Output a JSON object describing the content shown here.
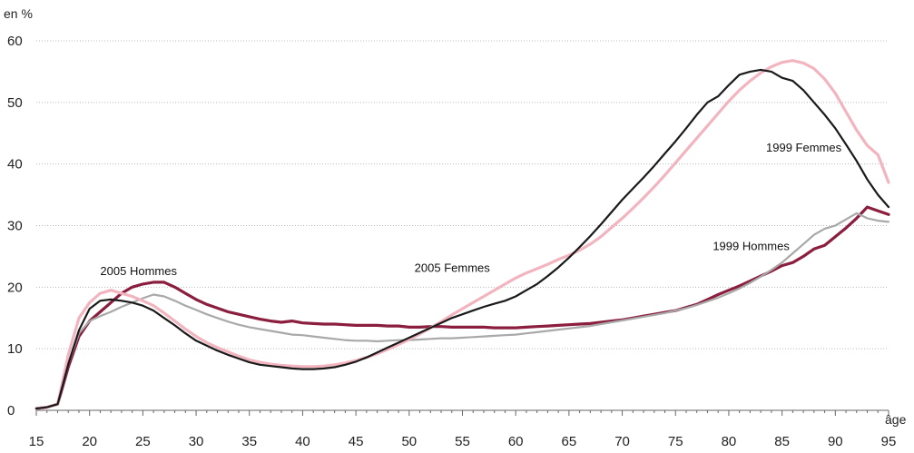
{
  "chart_data": {
    "type": "line",
    "ylabel": "en %",
    "xlabel": "âge",
    "xlim": [
      15,
      95
    ],
    "ylim": [
      0,
      60
    ],
    "x_ticks": [
      15,
      20,
      25,
      30,
      35,
      40,
      45,
      50,
      55,
      60,
      65,
      70,
      75,
      80,
      85,
      90,
      95
    ],
    "y_ticks": [
      0,
      10,
      20,
      30,
      40,
      50,
      60
    ],
    "grid": "horizontal dotted",
    "legend": "none",
    "series": [
      {
        "name": "2005 Hommes",
        "color": "#8b1e3f",
        "points": [
          [
            15,
            0.3
          ],
          [
            16,
            0.5
          ],
          [
            17,
            1.0
          ],
          [
            18,
            7
          ],
          [
            19,
            12
          ],
          [
            20,
            14.5
          ],
          [
            21,
            16
          ],
          [
            22,
            17.5
          ],
          [
            23,
            19
          ],
          [
            24,
            20
          ],
          [
            25,
            20.5
          ],
          [
            26,
            20.8
          ],
          [
            27,
            20.8
          ],
          [
            28,
            20
          ],
          [
            29,
            19
          ],
          [
            30,
            18
          ],
          [
            31,
            17.2
          ],
          [
            32,
            16.6
          ],
          [
            33,
            16
          ],
          [
            34,
            15.6
          ],
          [
            35,
            15.2
          ],
          [
            36,
            14.8
          ],
          [
            37,
            14.5
          ],
          [
            38,
            14.3
          ],
          [
            39,
            14.5
          ],
          [
            40,
            14.2
          ],
          [
            41,
            14.1
          ],
          [
            42,
            14
          ],
          [
            43,
            14
          ],
          [
            44,
            13.9
          ],
          [
            45,
            13.8
          ],
          [
            46,
            13.8
          ],
          [
            47,
            13.8
          ],
          [
            48,
            13.7
          ],
          [
            49,
            13.7
          ],
          [
            50,
            13.5
          ],
          [
            51,
            13.5
          ],
          [
            52,
            13.6
          ],
          [
            53,
            13.6
          ],
          [
            54,
            13.5
          ],
          [
            55,
            13.5
          ],
          [
            56,
            13.5
          ],
          [
            57,
            13.5
          ],
          [
            58,
            13.4
          ],
          [
            59,
            13.4
          ],
          [
            60,
            13.4
          ],
          [
            61,
            13.5
          ],
          [
            62,
            13.6
          ],
          [
            63,
            13.7
          ],
          [
            64,
            13.8
          ],
          [
            65,
            13.9
          ],
          [
            66,
            14
          ],
          [
            67,
            14.1
          ],
          [
            68,
            14.3
          ],
          [
            69,
            14.5
          ],
          [
            70,
            14.7
          ],
          [
            71,
            15
          ],
          [
            72,
            15.3
          ],
          [
            73,
            15.6
          ],
          [
            74,
            15.9
          ],
          [
            75,
            16.2
          ],
          [
            76,
            16.7
          ],
          [
            77,
            17.2
          ],
          [
            78,
            18
          ],
          [
            79,
            18.8
          ],
          [
            80,
            19.5
          ],
          [
            81,
            20.2
          ],
          [
            82,
            21
          ],
          [
            83,
            21.8
          ],
          [
            84,
            22.6
          ],
          [
            85,
            23.5
          ],
          [
            86,
            24
          ],
          [
            87,
            25
          ],
          [
            88,
            26.2
          ],
          [
            89,
            26.8
          ],
          [
            90,
            28.2
          ],
          [
            91,
            29.6
          ],
          [
            92,
            31.2
          ],
          [
            93,
            33
          ],
          [
            94,
            32.4
          ],
          [
            95,
            31.8
          ]
        ]
      },
      {
        "name": "1999 Hommes",
        "color": "#a9a9a9",
        "points": [
          [
            15,
            0.3
          ],
          [
            16,
            0.5
          ],
          [
            17,
            1.0
          ],
          [
            18,
            7.5
          ],
          [
            19,
            12.5
          ],
          [
            20,
            14.5
          ],
          [
            21,
            15.3
          ],
          [
            22,
            16
          ],
          [
            23,
            16.8
          ],
          [
            24,
            17.5
          ],
          [
            25,
            18.2
          ],
          [
            26,
            18.8
          ],
          [
            27,
            18.5
          ],
          [
            28,
            17.8
          ],
          [
            29,
            17
          ],
          [
            30,
            16.3
          ],
          [
            31,
            15.6
          ],
          [
            32,
            15
          ],
          [
            33,
            14.4
          ],
          [
            34,
            13.9
          ],
          [
            35,
            13.5
          ],
          [
            36,
            13.2
          ],
          [
            37,
            12.9
          ],
          [
            38,
            12.6
          ],
          [
            39,
            12.3
          ],
          [
            40,
            12.2
          ],
          [
            41,
            12
          ],
          [
            42,
            11.8
          ],
          [
            43,
            11.6
          ],
          [
            44,
            11.4
          ],
          [
            45,
            11.3
          ],
          [
            46,
            11.3
          ],
          [
            47,
            11.2
          ],
          [
            48,
            11.3
          ],
          [
            49,
            11.4
          ],
          [
            50,
            11.4
          ],
          [
            51,
            11.5
          ],
          [
            52,
            11.6
          ],
          [
            53,
            11.7
          ],
          [
            54,
            11.7
          ],
          [
            55,
            11.8
          ],
          [
            56,
            11.9
          ],
          [
            57,
            12
          ],
          [
            58,
            12.1
          ],
          [
            59,
            12.2
          ],
          [
            60,
            12.3
          ],
          [
            61,
            12.5
          ],
          [
            62,
            12.7
          ],
          [
            63,
            12.9
          ],
          [
            64,
            13.1
          ],
          [
            65,
            13.3
          ],
          [
            66,
            13.5
          ],
          [
            67,
            13.7
          ],
          [
            68,
            14
          ],
          [
            69,
            14.3
          ],
          [
            70,
            14.6
          ],
          [
            71,
            14.9
          ],
          [
            72,
            15.2
          ],
          [
            73,
            15.5
          ],
          [
            74,
            15.8
          ],
          [
            75,
            16.2
          ],
          [
            76,
            16.6
          ],
          [
            77,
            17.1
          ],
          [
            78,
            17.7
          ],
          [
            79,
            18.3
          ],
          [
            80,
            19
          ],
          [
            81,
            19.8
          ],
          [
            82,
            20.7
          ],
          [
            83,
            21.7
          ],
          [
            84,
            22.8
          ],
          [
            85,
            24
          ],
          [
            86,
            25.5
          ],
          [
            87,
            27
          ],
          [
            88,
            28.5
          ],
          [
            89,
            29.5
          ],
          [
            90,
            30
          ],
          [
            91,
            31
          ],
          [
            92,
            32
          ],
          [
            93,
            31.2
          ],
          [
            94,
            30.8
          ],
          [
            95,
            30.6
          ]
        ]
      },
      {
        "name": "2005 Femmes",
        "color": "#f2b5c0",
        "points": [
          [
            15,
            0.3
          ],
          [
            16,
            0.5
          ],
          [
            17,
            1.0
          ],
          [
            18,
            9
          ],
          [
            19,
            15
          ],
          [
            20,
            17.5
          ],
          [
            21,
            19
          ],
          [
            22,
            19.5
          ],
          [
            23,
            19
          ],
          [
            24,
            18.5
          ],
          [
            25,
            17.8
          ],
          [
            26,
            17
          ],
          [
            27,
            15.8
          ],
          [
            28,
            14.5
          ],
          [
            29,
            13.2
          ],
          [
            30,
            12
          ],
          [
            31,
            11
          ],
          [
            32,
            10.2
          ],
          [
            33,
            9.5
          ],
          [
            34,
            8.8
          ],
          [
            35,
            8.2
          ],
          [
            36,
            7.8
          ],
          [
            37,
            7.5
          ],
          [
            38,
            7.3
          ],
          [
            39,
            7.2
          ],
          [
            40,
            7.1
          ],
          [
            41,
            7.1
          ],
          [
            42,
            7.2
          ],
          [
            43,
            7.4
          ],
          [
            44,
            7.7
          ],
          [
            45,
            8.1
          ],
          [
            46,
            8.6
          ],
          [
            47,
            9.2
          ],
          [
            48,
            9.9
          ],
          [
            49,
            10.7
          ],
          [
            50,
            11.5
          ],
          [
            51,
            12.4
          ],
          [
            52,
            13.4
          ],
          [
            53,
            14.4
          ],
          [
            54,
            15.5
          ],
          [
            55,
            16.5
          ],
          [
            56,
            17.5
          ],
          [
            57,
            18.5
          ],
          [
            58,
            19.5
          ],
          [
            59,
            20.5
          ],
          [
            60,
            21.5
          ],
          [
            61,
            22.3
          ],
          [
            62,
            23
          ],
          [
            63,
            23.7
          ],
          [
            64,
            24.5
          ],
          [
            65,
            25.2
          ],
          [
            66,
            26
          ],
          [
            67,
            27
          ],
          [
            68,
            28.2
          ],
          [
            69,
            29.7
          ],
          [
            70,
            31.2
          ],
          [
            71,
            32.8
          ],
          [
            72,
            34.5
          ],
          [
            73,
            36.3
          ],
          [
            74,
            38.2
          ],
          [
            75,
            40.2
          ],
          [
            76,
            42.2
          ],
          [
            77,
            44.2
          ],
          [
            78,
            46.2
          ],
          [
            79,
            48.2
          ],
          [
            80,
            50.2
          ],
          [
            81,
            52
          ],
          [
            82,
            53.5
          ],
          [
            83,
            54.8
          ],
          [
            84,
            55.8
          ],
          [
            85,
            56.5
          ],
          [
            86,
            56.8
          ],
          [
            87,
            56.4
          ],
          [
            88,
            55.5
          ],
          [
            89,
            53.8
          ],
          [
            90,
            51.5
          ],
          [
            91,
            48.5
          ],
          [
            92,
            45.5
          ],
          [
            93,
            43
          ],
          [
            94,
            41.5
          ],
          [
            95,
            37
          ]
        ]
      },
      {
        "name": "1999 Femmes",
        "color": "#1a1a1a",
        "points": [
          [
            15,
            0.3
          ],
          [
            16,
            0.5
          ],
          [
            17,
            1.0
          ],
          [
            18,
            7.5
          ],
          [
            19,
            13
          ],
          [
            20,
            16.5
          ],
          [
            21,
            17.8
          ],
          [
            22,
            18
          ],
          [
            23,
            17.8
          ],
          [
            24,
            17.5
          ],
          [
            25,
            17
          ],
          [
            26,
            16.2
          ],
          [
            27,
            15
          ],
          [
            28,
            13.8
          ],
          [
            29,
            12.5
          ],
          [
            30,
            11.3
          ],
          [
            31,
            10.5
          ],
          [
            32,
            9.7
          ],
          [
            33,
            9
          ],
          [
            34,
            8.4
          ],
          [
            35,
            7.8
          ],
          [
            36,
            7.4
          ],
          [
            37,
            7.2
          ],
          [
            38,
            7
          ],
          [
            39,
            6.8
          ],
          [
            40,
            6.7
          ],
          [
            41,
            6.7
          ],
          [
            42,
            6.8
          ],
          [
            43,
            7
          ],
          [
            44,
            7.4
          ],
          [
            45,
            7.9
          ],
          [
            46,
            8.6
          ],
          [
            47,
            9.4
          ],
          [
            48,
            10.2
          ],
          [
            49,
            11
          ],
          [
            50,
            11.8
          ],
          [
            51,
            12.6
          ],
          [
            52,
            13.4
          ],
          [
            53,
            14.2
          ],
          [
            54,
            15
          ],
          [
            55,
            15.6
          ],
          [
            56,
            16.2
          ],
          [
            57,
            16.8
          ],
          [
            58,
            17.3
          ],
          [
            59,
            17.8
          ],
          [
            60,
            18.5
          ],
          [
            61,
            19.5
          ],
          [
            62,
            20.5
          ],
          [
            63,
            21.8
          ],
          [
            64,
            23.2
          ],
          [
            65,
            24.8
          ],
          [
            66,
            26.5
          ],
          [
            67,
            28.3
          ],
          [
            68,
            30.2
          ],
          [
            69,
            32.2
          ],
          [
            70,
            34.2
          ],
          [
            71,
            36
          ],
          [
            72,
            37.8
          ],
          [
            73,
            39.7
          ],
          [
            74,
            41.7
          ],
          [
            75,
            43.7
          ],
          [
            76,
            45.8
          ],
          [
            77,
            48
          ],
          [
            78,
            50
          ],
          [
            79,
            51
          ],
          [
            80,
            52.8
          ],
          [
            81,
            54.5
          ],
          [
            82,
            55
          ],
          [
            83,
            55.3
          ],
          [
            84,
            55
          ],
          [
            85,
            54
          ],
          [
            86,
            53.5
          ],
          [
            87,
            52
          ],
          [
            88,
            50
          ],
          [
            89,
            48
          ],
          [
            90,
            45.8
          ],
          [
            91,
            43.2
          ],
          [
            92,
            40.5
          ],
          [
            93,
            37.5
          ],
          [
            94,
            35
          ],
          [
            95,
            33
          ]
        ]
      }
    ],
    "annotations": [
      {
        "text": "2005 Hommes",
        "x": 21,
        "y": 22
      },
      {
        "text": "2005 Femmes",
        "x": 50.5,
        "y": 22.5
      },
      {
        "text": "1999 Femmes",
        "x": 83.5,
        "y": 42
      },
      {
        "text": "1999 Hommes",
        "x": 78.5,
        "y": 26
      }
    ]
  }
}
